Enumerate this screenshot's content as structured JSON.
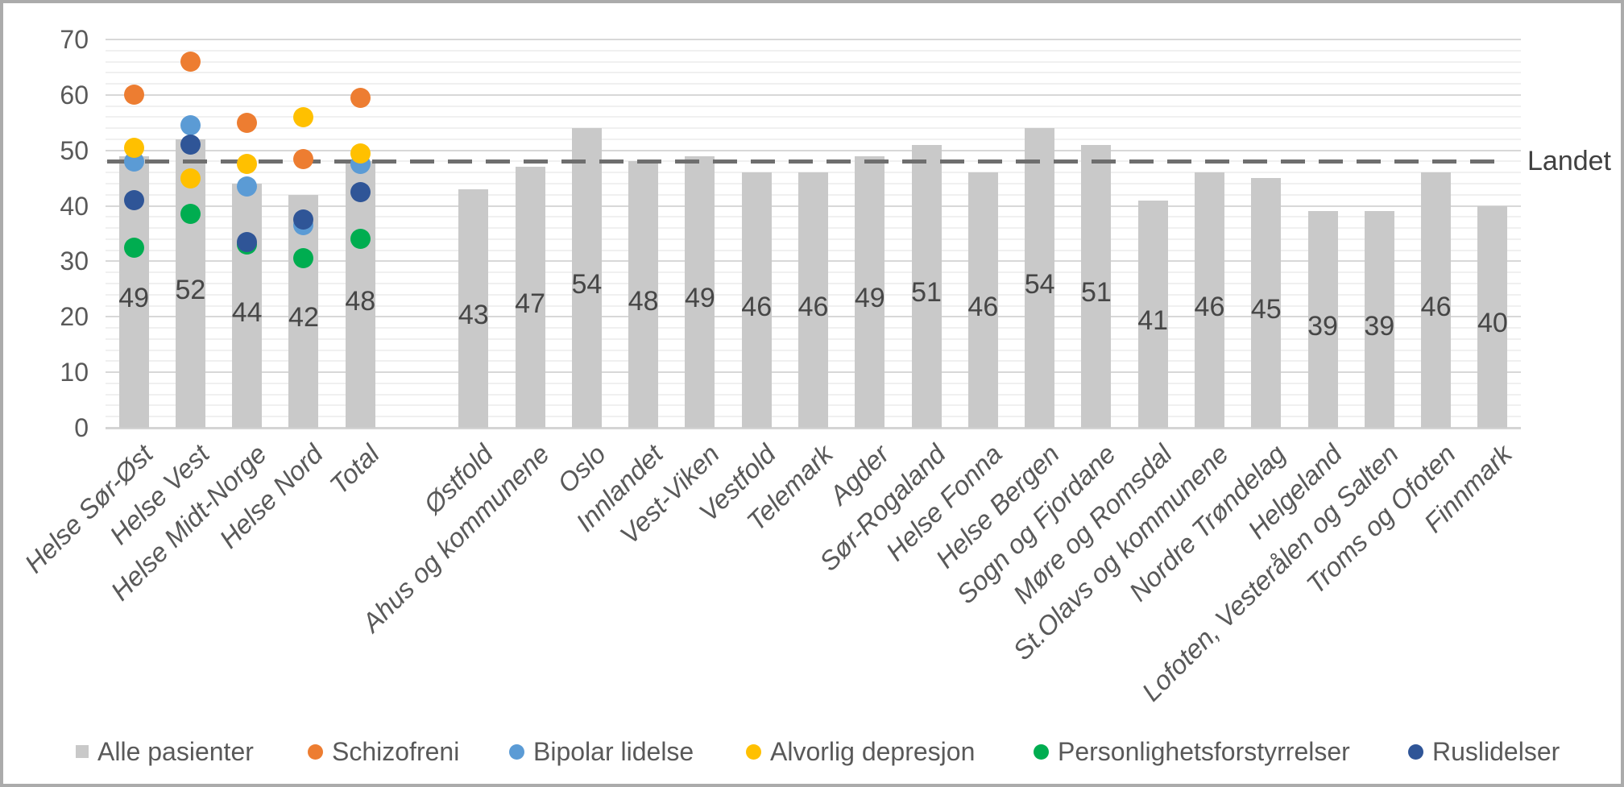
{
  "frame": {
    "border_color": "#ABABAB",
    "background": "#FFFFFF"
  },
  "reference_line": {
    "label": "Landet",
    "value": 48,
    "color": "#6E6E6E"
  },
  "y_axis": {
    "min": 0,
    "max": 70,
    "major_step": 10,
    "minor_step": 2,
    "tick_labels": [
      "0",
      "10",
      "20",
      "30",
      "40",
      "50",
      "60",
      "70"
    ]
  },
  "legend": {
    "items": [
      {
        "label": "Alle pasienter",
        "marker": "square",
        "color": "#C9C9C9"
      },
      {
        "label": "Schizofreni",
        "marker": "circle",
        "color": "#ED7D31"
      },
      {
        "label": "Bipolar lidelse",
        "marker": "circle",
        "color": "#5B9BD5"
      },
      {
        "label": "Alvorlig depresjon",
        "marker": "circle",
        "color": "#FFC000"
      },
      {
        "label": "Personlighetsforstyrrelser",
        "marker": "circle",
        "color": "#00AD50"
      },
      {
        "label": "Ruslidelser",
        "marker": "circle",
        "color": "#2F5597"
      }
    ]
  },
  "chart_data": {
    "type": "bar",
    "title": "",
    "xlabel": "",
    "ylabel": "",
    "ylim": [
      0,
      70
    ],
    "grid": true,
    "legend_position": "bottom",
    "gap_after_category": "Total",
    "categories": [
      "Helse Sør-Øst",
      "Helse Vest",
      "Helse Midt-Norge",
      "Helse Nord",
      "Total",
      "Østfold",
      "Ahus og kommunene",
      "Oslo",
      "Innlandet",
      "Vest-Viken",
      "Vestfold",
      "Telemark",
      "Agder",
      "Sør-Rogaland",
      "Helse Fonna",
      "Helse Bergen",
      "Sogn og Fjordane",
      "Møre og Romsdal",
      "St.Olavs og kommunene",
      "Nordre Trøndelag",
      "Helgeland",
      "Lofoten, Vesterålen og Salten",
      "Troms og Ofoten",
      "Finnmark"
    ],
    "series": [
      {
        "name": "Alle pasienter",
        "type": "bar",
        "color": "#C9C9C9",
        "labels_shown": true,
        "values": [
          49,
          52,
          44,
          42,
          48,
          43,
          47,
          54,
          48,
          49,
          46,
          46,
          49,
          51,
          46,
          54,
          51,
          41,
          46,
          45,
          39,
          39,
          46,
          40
        ]
      },
      {
        "name": "Schizofreni",
        "type": "scatter",
        "color": "#ED7D31",
        "values": [
          60,
          66,
          55,
          48.5,
          59.5,
          null,
          null,
          null,
          null,
          null,
          null,
          null,
          null,
          null,
          null,
          null,
          null,
          null,
          null,
          null,
          null,
          null,
          null,
          null
        ]
      },
      {
        "name": "Bipolar lidelse",
        "type": "scatter",
        "color": "#5B9BD5",
        "values": [
          48,
          54.5,
          43.5,
          36.5,
          47.5,
          null,
          null,
          null,
          null,
          null,
          null,
          null,
          null,
          null,
          null,
          null,
          null,
          null,
          null,
          null,
          null,
          null,
          null,
          null
        ]
      },
      {
        "name": "Alvorlig depresjon",
        "type": "scatter",
        "color": "#FFC000",
        "values": [
          50.5,
          45,
          47.5,
          56,
          49.5,
          null,
          null,
          null,
          null,
          null,
          null,
          null,
          null,
          null,
          null,
          null,
          null,
          null,
          null,
          null,
          null,
          null,
          null,
          null
        ]
      },
      {
        "name": "Personlighetsforstyrrelser",
        "type": "scatter",
        "color": "#00AD50",
        "values": [
          32.5,
          38.5,
          33,
          30.5,
          34,
          null,
          null,
          null,
          null,
          null,
          null,
          null,
          null,
          null,
          null,
          null,
          null,
          null,
          null,
          null,
          null,
          null,
          null,
          null
        ]
      },
      {
        "name": "Ruslidelser",
        "type": "scatter",
        "color": "#2F5597",
        "values": [
          41,
          51,
          33.5,
          37.5,
          42.5,
          null,
          null,
          null,
          null,
          null,
          null,
          null,
          null,
          null,
          null,
          null,
          null,
          null,
          null,
          null,
          null,
          null,
          null,
          null
        ]
      }
    ],
    "reference_line": {
      "label": "Landet",
      "value": 48
    }
  }
}
